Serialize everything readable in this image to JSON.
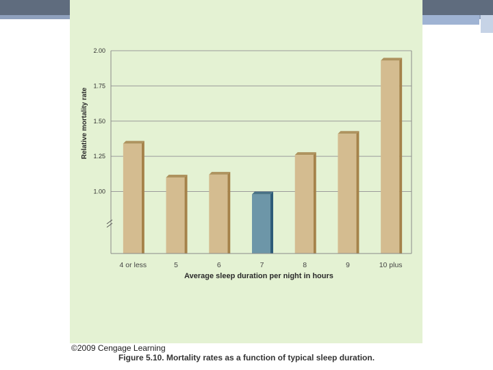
{
  "slide": {
    "copyright": "©2009 Cengage Learning",
    "caption": "Figure 5.10. Mortality rates as a function of typical sleep duration."
  },
  "colors": {
    "panel_bg": "#e4f2d3",
    "bar_fill": "#d4bc90",
    "bar_shade": "#a5824a",
    "highlight_fill": "#6d96a8",
    "highlight_shade": "#2e5c78"
  },
  "chart_data": {
    "type": "bar",
    "title": "",
    "xlabel": "Average sleep duration per night in hours",
    "ylabel": "Relative mortality rate",
    "categories": [
      "4 or less",
      "5",
      "6",
      "7",
      "8",
      "9",
      "10 plus"
    ],
    "values": [
      1.34,
      1.1,
      1.12,
      0.98,
      1.26,
      1.41,
      1.93
    ],
    "highlight_category": "7",
    "yticks": [
      "1.00",
      "1.25",
      "1.50",
      "1.75",
      "2.00"
    ],
    "ylim": [
      0.56,
      2.0
    ],
    "axis_break": true,
    "grid": true
  }
}
